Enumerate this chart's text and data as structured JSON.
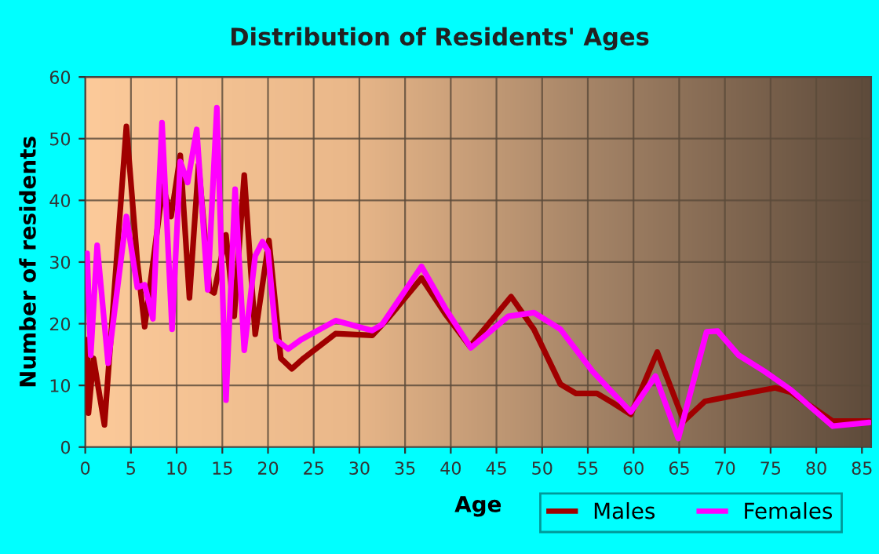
{
  "chart_data": {
    "type": "line",
    "title": "Distribution of Residents' Ages",
    "xlabel": "Age",
    "ylabel": "Number of residents",
    "xlim": [
      0,
      86
    ],
    "xticks": [
      0,
      5,
      10,
      15,
      20,
      25,
      30,
      35,
      40,
      45,
      50,
      55,
      60,
      65,
      70,
      75,
      80,
      85
    ],
    "ylim": [
      0,
      60
    ],
    "yticks": [
      0,
      10,
      20,
      30,
      40,
      50,
      60
    ],
    "grid": true,
    "legend": "bottom right",
    "marker": "none",
    "line_style": "solid",
    "series": [
      {
        "name": "Males",
        "color": "#a00000",
        "x": [
          0.2,
          0.35,
          0.9,
          2.1,
          4.5,
          5.7,
          6.5,
          8.5,
          9.4,
          10.4,
          11.4,
          12.4,
          13.6,
          14.1,
          15.4,
          16.3,
          17.4,
          18.6,
          20.1,
          21.4,
          22.6,
          23.9,
          27.4,
          31.4,
          33.1,
          36.8,
          39.4,
          42.1,
          46.6,
          49.1,
          52,
          53.7,
          56,
          57.7,
          59.7,
          62.6,
          65.5,
          67.8,
          71.5,
          75.5,
          77.2,
          81.8,
          85.8
        ],
        "values": [
          17.4,
          5.5,
          14.4,
          3.6,
          52,
          30,
          19.5,
          42.3,
          37.4,
          47.3,
          24.2,
          45.8,
          25.5,
          25,
          34.4,
          21.2,
          44.1,
          18.3,
          33.5,
          14.4,
          12.7,
          14.4,
          18.4,
          18.1,
          20.8,
          27.4,
          21.6,
          16.3,
          24.4,
          19.1,
          10.2,
          8.7,
          8.7,
          7.2,
          5.3,
          15.4,
          4.2,
          7.4,
          8.5,
          9.6,
          8.9,
          4.2,
          4.2
        ]
      },
      {
        "name": "Females",
        "color": "#ff00ff",
        "x": [
          0.2,
          0.6,
          1.3,
          2.5,
          4.5,
          5.7,
          6.5,
          7.4,
          8.4,
          9.5,
          10.4,
          11.2,
          12.2,
          13.4,
          14.4,
          15.4,
          16.4,
          17.4,
          18.6,
          19.4,
          20.0,
          20.9,
          22.2,
          23.6,
          27.4,
          31.4,
          32.5,
          36.8,
          39.4,
          42.2,
          46.3,
          49.1,
          52,
          55.5,
          59.7,
          62.4,
          64.9,
          68,
          69.2,
          71.5,
          74.3,
          77.2,
          81.8,
          85.8
        ],
        "values": [
          31.4,
          14.9,
          32.7,
          13.6,
          37.4,
          25.9,
          26.3,
          20.8,
          52.6,
          19.1,
          46.3,
          42.9,
          51.5,
          25.5,
          55,
          7.6,
          41.8,
          15.7,
          31,
          33.3,
          31.8,
          17.4,
          15.9,
          17.4,
          20.5,
          18.9,
          19.9,
          29.3,
          22.5,
          16.1,
          21.2,
          21.8,
          19.1,
          12.3,
          5.7,
          11.5,
          1.4,
          18.7,
          18.8,
          14.9,
          12.3,
          9.3,
          3.4,
          4
        ]
      }
    ]
  }
}
